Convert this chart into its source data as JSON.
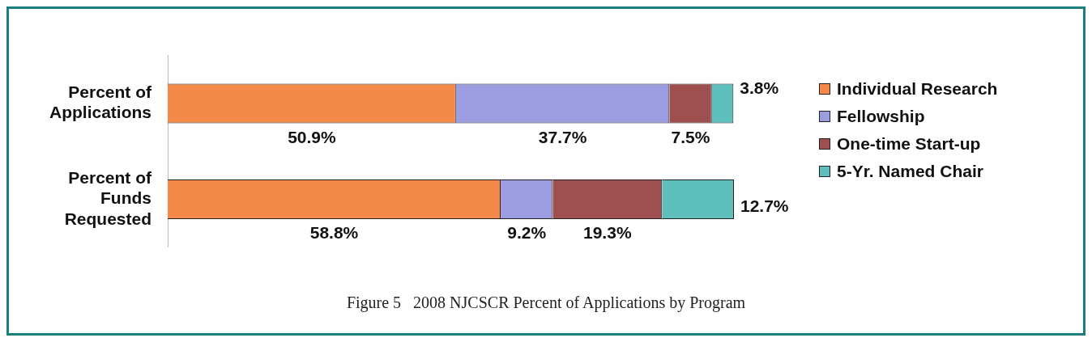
{
  "chart_data": {
    "type": "bar",
    "orientation": "horizontal",
    "stacked": true,
    "categories": [
      "Percent of Applications",
      "Percent of Funds Requested"
    ],
    "series": [
      {
        "name": "Individual Research",
        "color": "#f4894a",
        "values": [
          50.9,
          58.8
        ],
        "value_labels": [
          "50.9%",
          "58.8%"
        ]
      },
      {
        "name": "Fellowship",
        "color": "#9c9ce0",
        "values": [
          37.7,
          9.2
        ],
        "value_labels": [
          "37.7%",
          "9.2%"
        ]
      },
      {
        "name": "One-time Start-up",
        "color": "#9e4f4f",
        "values": [
          7.5,
          19.3
        ],
        "value_labels": [
          "7.5%",
          "19.3%"
        ]
      },
      {
        "name": "5-Yr. Named Chair",
        "color": "#5fbfbd",
        "values": [
          3.8,
          12.7
        ],
        "value_labels": [
          "3.8%",
          "12.7%"
        ]
      }
    ],
    "legend": "right",
    "grid": false,
    "tick_labels": "y",
    "annotations": [
      "Figure 5   2008 NJCSCR Percent of Applications by Program"
    ]
  }
}
